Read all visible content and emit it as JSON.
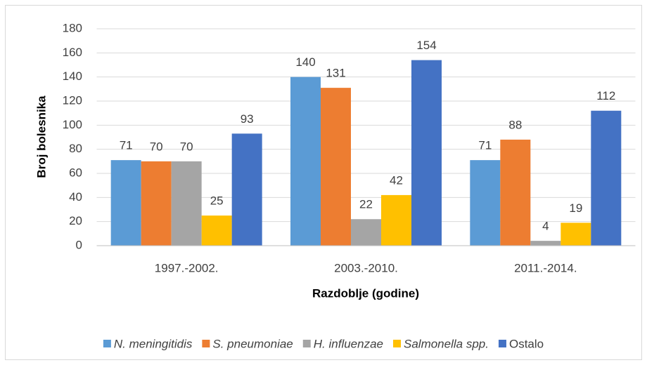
{
  "chart_data": {
    "type": "bar",
    "categories": [
      "1997.-2002.",
      "2003.-2010.",
      "2011.-2014."
    ],
    "series": [
      {
        "name": "N. meningitidis",
        "color": "#5b9bd5",
        "values": [
          71,
          140,
          71
        ]
      },
      {
        "name": "S. pneumoniae",
        "color": "#ed7d31",
        "values": [
          70,
          131,
          88
        ]
      },
      {
        "name": "H. influenzae",
        "color": "#a5a5a5",
        "values": [
          70,
          22,
          4
        ]
      },
      {
        "name": "Salmonella spp.",
        "color": "#ffc000",
        "values": [
          25,
          42,
          19
        ]
      },
      {
        "name": "Ostalo",
        "color": "#4472c4",
        "values": [
          93,
          154,
          112
        ]
      }
    ],
    "ylabel": "Broj bolesnika",
    "xlabel": "Razdoblje (godine)",
    "ylim": [
      0,
      180
    ],
    "yticks": [
      0,
      20,
      40,
      60,
      80,
      100,
      120,
      140,
      160,
      180
    ],
    "grid": true,
    "legend": "bottom"
  }
}
